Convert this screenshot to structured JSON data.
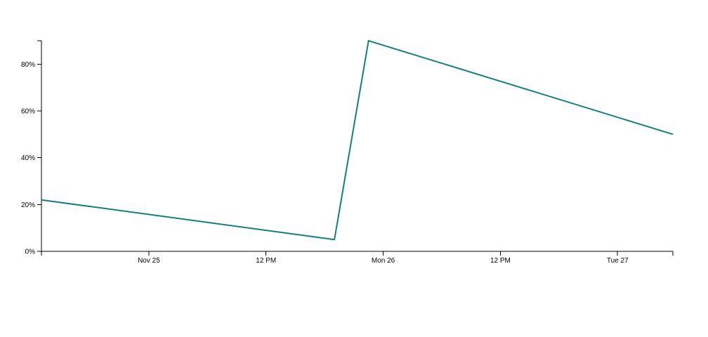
{
  "chart_data": {
    "type": "line",
    "title": "",
    "xlabel": "",
    "ylabel": "",
    "x_type": "time",
    "x_range": [
      "2018-11-24T13:00",
      "2018-11-27T05:40"
    ],
    "ylim": [
      0,
      0.9
    ],
    "y_format": "percent",
    "grid": false,
    "legend": "none",
    "x_ticks": [
      {
        "at": "2018-11-25T00:00",
        "label": "Nov 25"
      },
      {
        "at": "2018-11-25T12:00",
        "label": "12 PM"
      },
      {
        "at": "2018-11-26T00:00",
        "label": "Mon 26"
      },
      {
        "at": "2018-11-26T12:00",
        "label": "12 PM"
      },
      {
        "at": "2018-11-27T00:00",
        "label": "Tue 27"
      }
    ],
    "y_ticks": [
      {
        "value": 0,
        "label": "0%"
      },
      {
        "value": 0.2,
        "label": "20%"
      },
      {
        "value": 0.4,
        "label": "40%"
      },
      {
        "value": 0.6,
        "label": "60%"
      },
      {
        "value": 0.8,
        "label": "80%"
      }
    ],
    "series": [
      {
        "color": "#137f80",
        "points": [
          {
            "x": "2018-11-24T13:00",
            "y": 0.22
          },
          {
            "x": "2018-11-25T19:00",
            "y": 0.05
          },
          {
            "x": "2018-11-25T22:30",
            "y": 0.9
          },
          {
            "x": "2018-11-27T05:40",
            "y": 0.5
          }
        ]
      }
    ]
  }
}
